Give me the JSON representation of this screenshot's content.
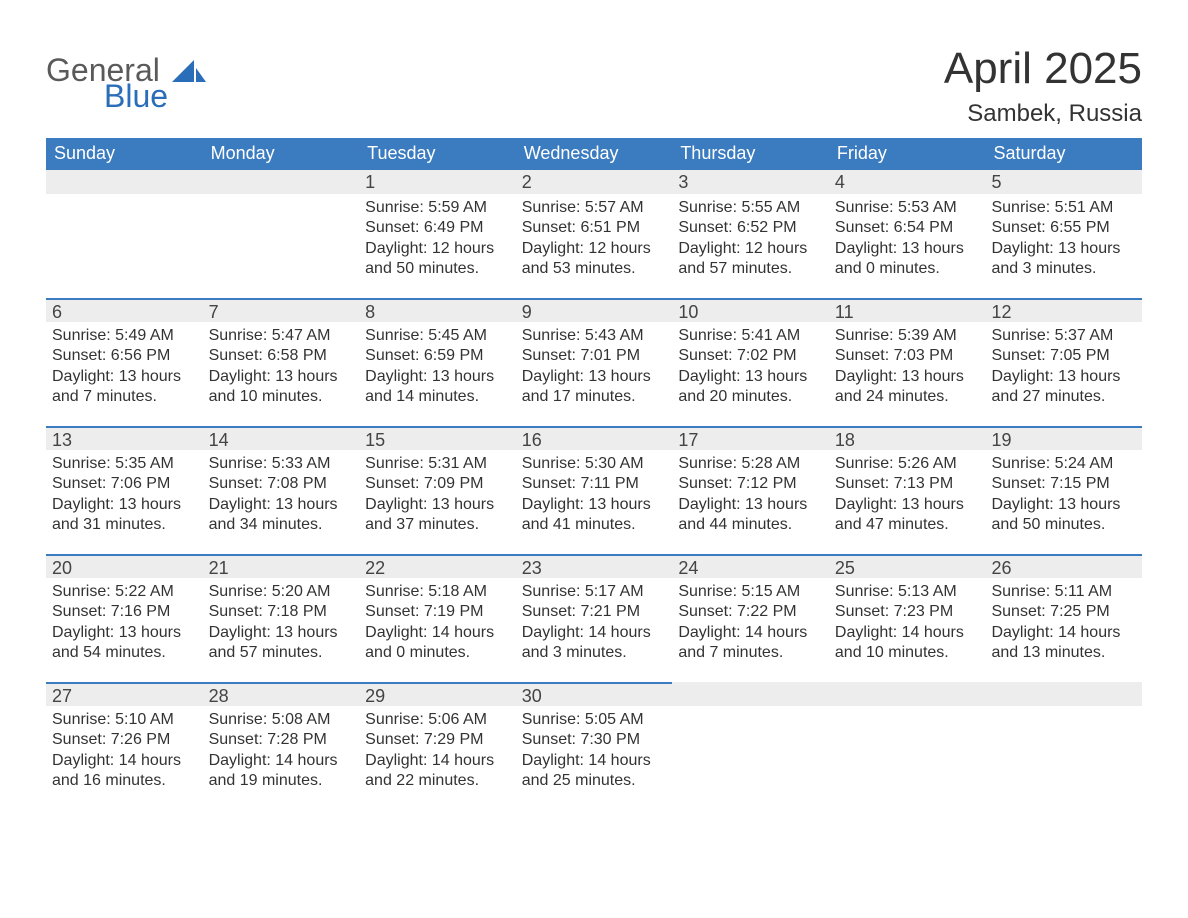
{
  "logo": {
    "text_top": "General",
    "text_bottom": "Blue",
    "accent_color": "#2a6db8",
    "gray_color": "#5a5a5a"
  },
  "header": {
    "title": "April 2025",
    "subtitle": "Sambek, Russia"
  },
  "colors": {
    "header_bar_bg": "#3b7bbf",
    "header_bar_text": "#ffffff",
    "day_number_bg": "#ededed",
    "week_divider": "#3b7bbf",
    "background": "#ffffff",
    "text": "#333333"
  },
  "weekdays": [
    "Sunday",
    "Monday",
    "Tuesday",
    "Wednesday",
    "Thursday",
    "Friday",
    "Saturday"
  ],
  "weeks": [
    [
      {
        "day": "",
        "sunrise": "",
        "sunset": "",
        "daylight": ""
      },
      {
        "day": "",
        "sunrise": "",
        "sunset": "",
        "daylight": ""
      },
      {
        "day": "1",
        "sunrise": "Sunrise: 5:59 AM",
        "sunset": "Sunset: 6:49 PM",
        "daylight": "Daylight: 12 hours and 50 minutes."
      },
      {
        "day": "2",
        "sunrise": "Sunrise: 5:57 AM",
        "sunset": "Sunset: 6:51 PM",
        "daylight": "Daylight: 12 hours and 53 minutes."
      },
      {
        "day": "3",
        "sunrise": "Sunrise: 5:55 AM",
        "sunset": "Sunset: 6:52 PM",
        "daylight": "Daylight: 12 hours and 57 minutes."
      },
      {
        "day": "4",
        "sunrise": "Sunrise: 5:53 AM",
        "sunset": "Sunset: 6:54 PM",
        "daylight": "Daylight: 13 hours and 0 minutes."
      },
      {
        "day": "5",
        "sunrise": "Sunrise: 5:51 AM",
        "sunset": "Sunset: 6:55 PM",
        "daylight": "Daylight: 13 hours and 3 minutes."
      }
    ],
    [
      {
        "day": "6",
        "sunrise": "Sunrise: 5:49 AM",
        "sunset": "Sunset: 6:56 PM",
        "daylight": "Daylight: 13 hours and 7 minutes."
      },
      {
        "day": "7",
        "sunrise": "Sunrise: 5:47 AM",
        "sunset": "Sunset: 6:58 PM",
        "daylight": "Daylight: 13 hours and 10 minutes."
      },
      {
        "day": "8",
        "sunrise": "Sunrise: 5:45 AM",
        "sunset": "Sunset: 6:59 PM",
        "daylight": "Daylight: 13 hours and 14 minutes."
      },
      {
        "day": "9",
        "sunrise": "Sunrise: 5:43 AM",
        "sunset": "Sunset: 7:01 PM",
        "daylight": "Daylight: 13 hours and 17 minutes."
      },
      {
        "day": "10",
        "sunrise": "Sunrise: 5:41 AM",
        "sunset": "Sunset: 7:02 PM",
        "daylight": "Daylight: 13 hours and 20 minutes."
      },
      {
        "day": "11",
        "sunrise": "Sunrise: 5:39 AM",
        "sunset": "Sunset: 7:03 PM",
        "daylight": "Daylight: 13 hours and 24 minutes."
      },
      {
        "day": "12",
        "sunrise": "Sunrise: 5:37 AM",
        "sunset": "Sunset: 7:05 PM",
        "daylight": "Daylight: 13 hours and 27 minutes."
      }
    ],
    [
      {
        "day": "13",
        "sunrise": "Sunrise: 5:35 AM",
        "sunset": "Sunset: 7:06 PM",
        "daylight": "Daylight: 13 hours and 31 minutes."
      },
      {
        "day": "14",
        "sunrise": "Sunrise: 5:33 AM",
        "sunset": "Sunset: 7:08 PM",
        "daylight": "Daylight: 13 hours and 34 minutes."
      },
      {
        "day": "15",
        "sunrise": "Sunrise: 5:31 AM",
        "sunset": "Sunset: 7:09 PM",
        "daylight": "Daylight: 13 hours and 37 minutes."
      },
      {
        "day": "16",
        "sunrise": "Sunrise: 5:30 AM",
        "sunset": "Sunset: 7:11 PM",
        "daylight": "Daylight: 13 hours and 41 minutes."
      },
      {
        "day": "17",
        "sunrise": "Sunrise: 5:28 AM",
        "sunset": "Sunset: 7:12 PM",
        "daylight": "Daylight: 13 hours and 44 minutes."
      },
      {
        "day": "18",
        "sunrise": "Sunrise: 5:26 AM",
        "sunset": "Sunset: 7:13 PM",
        "daylight": "Daylight: 13 hours and 47 minutes."
      },
      {
        "day": "19",
        "sunrise": "Sunrise: 5:24 AM",
        "sunset": "Sunset: 7:15 PM",
        "daylight": "Daylight: 13 hours and 50 minutes."
      }
    ],
    [
      {
        "day": "20",
        "sunrise": "Sunrise: 5:22 AM",
        "sunset": "Sunset: 7:16 PM",
        "daylight": "Daylight: 13 hours and 54 minutes."
      },
      {
        "day": "21",
        "sunrise": "Sunrise: 5:20 AM",
        "sunset": "Sunset: 7:18 PM",
        "daylight": "Daylight: 13 hours and 57 minutes."
      },
      {
        "day": "22",
        "sunrise": "Sunrise: 5:18 AM",
        "sunset": "Sunset: 7:19 PM",
        "daylight": "Daylight: 14 hours and 0 minutes."
      },
      {
        "day": "23",
        "sunrise": "Sunrise: 5:17 AM",
        "sunset": "Sunset: 7:21 PM",
        "daylight": "Daylight: 14 hours and 3 minutes."
      },
      {
        "day": "24",
        "sunrise": "Sunrise: 5:15 AM",
        "sunset": "Sunset: 7:22 PM",
        "daylight": "Daylight: 14 hours and 7 minutes."
      },
      {
        "day": "25",
        "sunrise": "Sunrise: 5:13 AM",
        "sunset": "Sunset: 7:23 PM",
        "daylight": "Daylight: 14 hours and 10 minutes."
      },
      {
        "day": "26",
        "sunrise": "Sunrise: 5:11 AM",
        "sunset": "Sunset: 7:25 PM",
        "daylight": "Daylight: 14 hours and 13 minutes."
      }
    ],
    [
      {
        "day": "27",
        "sunrise": "Sunrise: 5:10 AM",
        "sunset": "Sunset: 7:26 PM",
        "daylight": "Daylight: 14 hours and 16 minutes."
      },
      {
        "day": "28",
        "sunrise": "Sunrise: 5:08 AM",
        "sunset": "Sunset: 7:28 PM",
        "daylight": "Daylight: 14 hours and 19 minutes."
      },
      {
        "day": "29",
        "sunrise": "Sunrise: 5:06 AM",
        "sunset": "Sunset: 7:29 PM",
        "daylight": "Daylight: 14 hours and 22 minutes."
      },
      {
        "day": "30",
        "sunrise": "Sunrise: 5:05 AM",
        "sunset": "Sunset: 7:30 PM",
        "daylight": "Daylight: 14 hours and 25 minutes."
      },
      {
        "day": "",
        "sunrise": "",
        "sunset": "",
        "daylight": ""
      },
      {
        "day": "",
        "sunrise": "",
        "sunset": "",
        "daylight": ""
      },
      {
        "day": "",
        "sunrise": "",
        "sunset": "",
        "daylight": ""
      }
    ]
  ]
}
